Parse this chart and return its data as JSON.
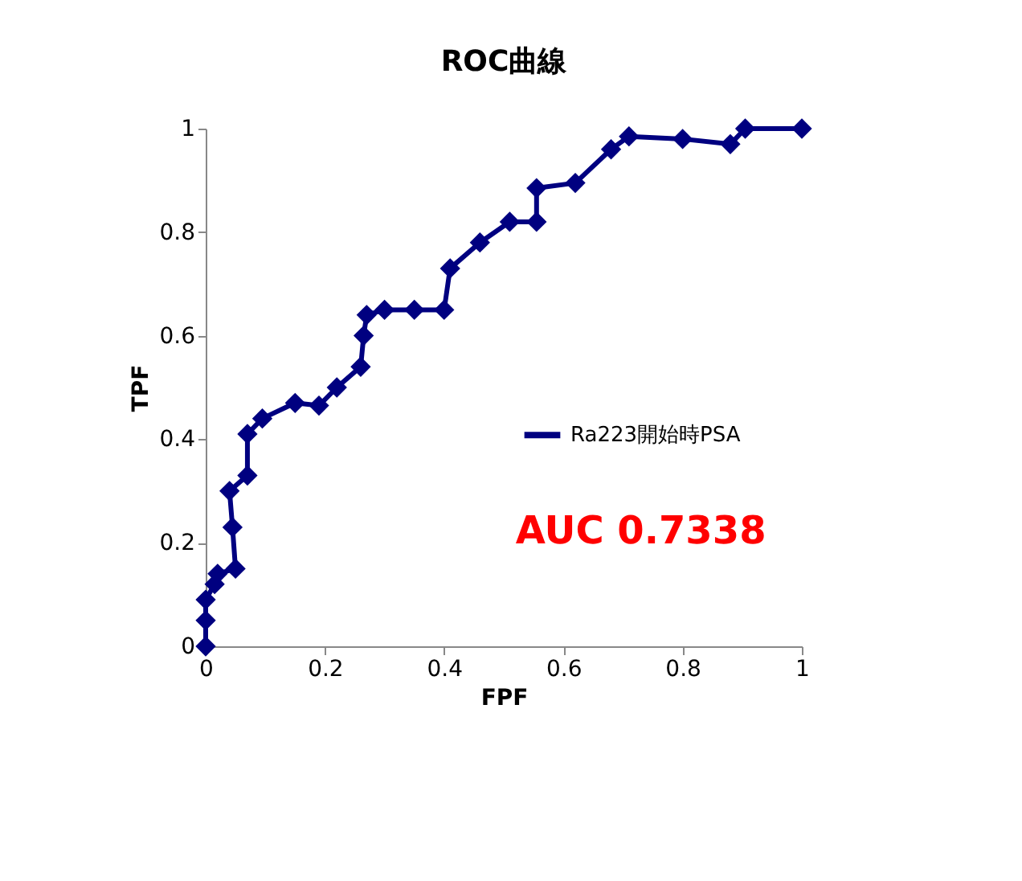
{
  "chart_data": {
    "type": "line",
    "title": "ROC曲線",
    "xlabel": "FPF",
    "ylabel": "TPF",
    "x": [
      0,
      0,
      0,
      0.015,
      0.02,
      0.05,
      0.045,
      0.04,
      0.07,
      0.07,
      0.095,
      0.15,
      0.19,
      0.22,
      0.26,
      0.265,
      0.27,
      0.3,
      0.35,
      0.4,
      0.41,
      0.46,
      0.51,
      0.555,
      0.555,
      0.62,
      0.68,
      0.71,
      0.8,
      0.88,
      0.905,
      1
    ],
    "series": [
      {
        "name": "Ra223開始時PSA",
        "color": "#000080",
        "values": [
          0,
          0.05,
          0.09,
          0.12,
          0.14,
          0.15,
          0.23,
          0.3,
          0.33,
          0.41,
          0.44,
          0.47,
          0.465,
          0.5,
          0.54,
          0.6,
          0.64,
          0.65,
          0.65,
          0.65,
          0.73,
          0.78,
          0.82,
          0.82,
          0.885,
          0.895,
          0.96,
          0.985,
          0.98,
          0.97,
          1,
          1
        ]
      }
    ],
    "xlim": [
      0,
      1
    ],
    "ylim": [
      0,
      1
    ],
    "xticks": [
      0,
      0.2,
      0.4,
      0.6,
      0.8,
      1
    ],
    "yticks": [
      0,
      0.2,
      0.4,
      0.6,
      0.8,
      1
    ],
    "marker": "diamond",
    "grid": false,
    "legend": "right",
    "annotations": [
      "AUC 0.7338"
    ]
  }
}
